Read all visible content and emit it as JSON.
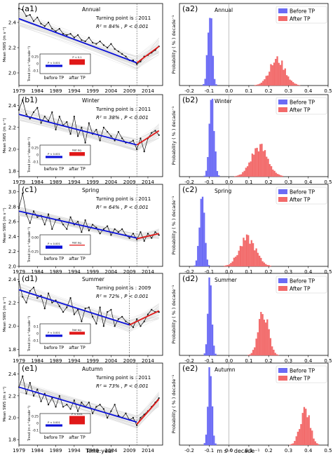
{
  "figure": {
    "left_xlabel": "Time:year",
    "right_xlabel": "m s⁻¹ decade⁻¹"
  },
  "colors": {
    "blue": "#0a10d8",
    "red": "#e01818",
    "before_hist": "#6b6bf5",
    "after_hist": "#f26a6a",
    "black": "#111111"
  },
  "chart_data": [
    {
      "type": "line",
      "id": "a1",
      "label": "(a1)",
      "season": "Annual",
      "ylabel": "Mean SWS (m s⁻¹)",
      "ylim": [
        1.9,
        2.55
      ],
      "yticks": [
        "2.0",
        "2.2",
        "2.4"
      ],
      "ytick_values": [
        2.0,
        2.2,
        2.4
      ],
      "x": [
        1979,
        1980,
        1981,
        1982,
        1983,
        1984,
        1985,
        1986,
        1987,
        1988,
        1989,
        1990,
        1991,
        1992,
        1993,
        1994,
        1995,
        1996,
        1997,
        1998,
        1999,
        2000,
        2001,
        2002,
        2003,
        2004,
        2005,
        2006,
        2007,
        2008,
        2009,
        2010,
        2011,
        2012,
        2013,
        2014,
        2015,
        2016,
        2017
      ],
      "xticks": [
        "1979",
        "1984",
        "1989",
        "1994",
        "1999",
        "2004",
        "2009",
        "2014"
      ],
      "values": [
        2.51,
        2.5,
        2.45,
        2.46,
        2.41,
        2.44,
        2.39,
        2.37,
        2.4,
        2.35,
        2.33,
        2.35,
        2.31,
        2.3,
        2.31,
        2.28,
        2.3,
        2.26,
        2.25,
        2.28,
        2.24,
        2.23,
        2.25,
        2.22,
        2.2,
        2.23,
        2.19,
        2.17,
        2.15,
        2.13,
        2.1,
        2.1,
        2.07,
        2.09,
        2.13,
        2.14,
        2.16,
        2.18,
        2.21
      ],
      "trend_before": [
        2.43,
        2.08
      ],
      "trend_after": [
        2.08,
        2.21
      ],
      "turning_year": 2011,
      "turning_text": "Turning point is : 2011",
      "r2_text": "R² = 84% , P < 0.001",
      "inset": {
        "ylabel": "Trend (m s⁻¹decade⁻¹)",
        "yticks": [
          "0.25",
          "0",
          "-0.1"
        ],
        "before_value": -0.1,
        "after_value": 0.25,
        "before_sig": "P < 0.001",
        "after_sig": "P < 0.1",
        "before_label": "before TP",
        "after_label": "after TP"
      }
    },
    {
      "type": "line",
      "id": "b1",
      "label": "(b1)",
      "season": "Winter",
      "ylabel": "Mean SWS (m s⁻¹)",
      "ylim": [
        1.75,
        2.5
      ],
      "yticks": [
        "1.8",
        "2.0",
        "2.2",
        "2.4"
      ],
      "ytick_values": [
        1.8,
        2.0,
        2.2,
        2.4
      ],
      "x": [
        1979,
        1980,
        1981,
        1982,
        1983,
        1984,
        1985,
        1986,
        1987,
        1988,
        1989,
        1990,
        1991,
        1992,
        1993,
        1994,
        1995,
        1996,
        1997,
        1998,
        1999,
        2000,
        2001,
        2002,
        2003,
        2004,
        2005,
        2006,
        2007,
        2008,
        2009,
        2010,
        2011,
        2012,
        2013,
        2014,
        2015,
        2016,
        2017
      ],
      "xticks": [
        "1979",
        "1984",
        "1989",
        "1994",
        "1999",
        "2004",
        "2009",
        "2014"
      ],
      "values": [
        2.36,
        2.45,
        2.32,
        2.28,
        2.34,
        2.38,
        2.24,
        2.3,
        2.26,
        2.34,
        2.18,
        2.3,
        2.22,
        2.25,
        2.14,
        2.3,
        2.12,
        2.2,
        2.06,
        2.24,
        2.14,
        2.18,
        2.08,
        2.2,
        2.16,
        2.12,
        2.08,
        2.16,
        2.1,
        2.06,
        2.06,
        2.08,
        2.0,
        2.1,
        1.98,
        2.1,
        2.15,
        2.17,
        2.13
      ],
      "trend_before": [
        2.32,
        2.04
      ],
      "trend_after": [
        2.04,
        2.17
      ],
      "turning_year": 2011,
      "turning_text": "Turning point is : 2011",
      "r2_text": "R² = 38% , P < 0.001",
      "inset": {
        "ylabel": "Trend (m s⁻¹decade⁻¹)",
        "yticks": [
          "0.25",
          "0",
          "-0.1"
        ],
        "before_value": -0.1,
        "after_value": 0.17,
        "before_sig": "P < 0.001",
        "after_sig": "Not sig.",
        "before_label": "before TP",
        "after_label": "after TP"
      }
    },
    {
      "type": "line",
      "id": "c1",
      "label": "(c1)",
      "season": "Spring",
      "ylabel": "Mean SWS (m s⁻¹)",
      "ylim": [
        2.0,
        3.1
      ],
      "yticks": [
        "2.0",
        "2.2",
        "2.4",
        "2.6",
        "2.8",
        "3.0"
      ],
      "ytick_values": [
        2.0,
        2.2,
        2.4,
        2.6,
        2.8,
        3.0
      ],
      "x": [
        1979,
        1980,
        1981,
        1982,
        1983,
        1984,
        1985,
        1986,
        1987,
        1988,
        1989,
        1990,
        1991,
        1992,
        1993,
        1994,
        1995,
        1996,
        1997,
        1998,
        1999,
        2000,
        2001,
        2002,
        2003,
        2004,
        2005,
        2006,
        2007,
        2008,
        2009,
        2010,
        2011,
        2012,
        2013,
        2014,
        2015,
        2016,
        2017
      ],
      "xticks": [
        "1979",
        "1984",
        "1989",
        "1994",
        "1999",
        "2004",
        "2009",
        "2014"
      ],
      "values": [
        2.78,
        2.98,
        2.7,
        2.58,
        2.74,
        2.66,
        2.68,
        2.56,
        2.7,
        2.5,
        2.62,
        2.64,
        2.56,
        2.5,
        2.66,
        2.56,
        2.6,
        2.46,
        2.62,
        2.48,
        2.56,
        2.52,
        2.44,
        2.5,
        2.54,
        2.42,
        2.5,
        2.46,
        2.5,
        2.42,
        2.38,
        2.44,
        2.36,
        2.46,
        2.34,
        2.44,
        2.38,
        2.46,
        2.42
      ],
      "trend_before": [
        2.74,
        2.38
      ],
      "trend_after": [
        2.37,
        2.44
      ],
      "turning_year": 2011,
      "turning_text": "Turning point is : 2011",
      "r2_text": "R² = 64% , P < 0.001",
      "inset": {
        "ylabel": "Trend (m s⁻¹decade⁻¹)",
        "yticks": [
          "0.00",
          "-0.25"
        ],
        "before_value": -0.14,
        "after_value": 0.04,
        "before_sig": "P < 0.001",
        "after_sig": "Not sig.",
        "before_label": "before TP",
        "after_label": "after TP"
      }
    },
    {
      "type": "line",
      "id": "d1",
      "label": "(d1)",
      "season": "Summer",
      "ylabel": "Mean SWS (m s⁻¹)",
      "ylim": [
        1.75,
        2.45
      ],
      "yticks": [
        "1.8",
        "2.0",
        "2.2",
        "2.4"
      ],
      "ytick_values": [
        1.8,
        2.0,
        2.2,
        2.4
      ],
      "x": [
        1979,
        1980,
        1981,
        1982,
        1983,
        1984,
        1985,
        1986,
        1987,
        1988,
        1989,
        1990,
        1991,
        1992,
        1993,
        1994,
        1995,
        1996,
        1997,
        1998,
        1999,
        2000,
        2001,
        2002,
        2003,
        2004,
        2005,
        2006,
        2007,
        2008,
        2009,
        2010,
        2011,
        2012,
        2013,
        2014,
        2015,
        2016,
        2017
      ],
      "xticks": [
        "1979",
        "1984",
        "1989",
        "1994",
        "1999",
        "2004",
        "2009",
        "2014"
      ],
      "values": [
        2.38,
        2.25,
        2.2,
        2.3,
        2.33,
        2.24,
        2.26,
        2.15,
        2.28,
        2.2,
        2.22,
        2.17,
        2.12,
        2.16,
        2.24,
        2.1,
        2.14,
        2.04,
        2.15,
        2.16,
        2.08,
        2.02,
        2.16,
        2.0,
        2.12,
        2.14,
        2.0,
        2.06,
        2.08,
        2.04,
        2.02,
        1.99,
        2.06,
        2.0,
        2.04,
        2.1,
        2.14,
        2.12,
        2.12
      ],
      "trend_before": [
        2.31,
        2.01
      ],
      "trend_after": [
        2.01,
        2.13
      ],
      "turning_year": 2009,
      "turning_text": "Turning point is : 2009",
      "r2_text": "R² = 72% , P < 0.001",
      "inset": {
        "ylabel": "Trend (m s⁻¹decade⁻¹)",
        "yticks": [
          "0.1",
          "0",
          "-0.1"
        ],
        "before_value": -0.1,
        "after_value": 0.13,
        "before_sig": "P < 0.001",
        "after_sig": "Not sig.",
        "before_label": "before TP",
        "after_label": "after TP"
      }
    },
    {
      "type": "line",
      "id": "e1",
      "label": "(e1)",
      "season": "Autumn",
      "ylabel": "Mean SWS (m s⁻¹)",
      "ylim": [
        1.75,
        2.5
      ],
      "yticks": [
        "1.8",
        "2.0",
        "2.2",
        "2.4"
      ],
      "ytick_values": [
        1.8,
        2.0,
        2.2,
        2.4
      ],
      "x": [
        1979,
        1980,
        1981,
        1982,
        1983,
        1984,
        1985,
        1986,
        1987,
        1988,
        1989,
        1990,
        1991,
        1992,
        1993,
        1994,
        1995,
        1996,
        1997,
        1998,
        1999,
        2000,
        2001,
        2002,
        2003,
        2004,
        2005,
        2006,
        2007,
        2008,
        2009,
        2010,
        2011,
        2012,
        2013,
        2014,
        2015,
        2016,
        2017
      ],
      "xticks": [
        "1979",
        "1984",
        "1989",
        "1994",
        "1999",
        "2004",
        "2009",
        "2014"
      ],
      "values": [
        2.28,
        2.38,
        2.22,
        2.32,
        2.2,
        2.26,
        2.15,
        2.22,
        2.12,
        2.18,
        2.1,
        2.2,
        2.1,
        2.12,
        2.08,
        2.16,
        2.06,
        2.14,
        2.1,
        2.14,
        2.04,
        2.1,
        2.12,
        2.08,
        2.0,
        2.06,
        2.12,
        2.02,
        2.0,
        2.04,
        1.98,
        2.0,
        1.93,
        2.0,
        2.03,
        2.06,
        2.1,
        2.14,
        2.18
      ],
      "trend_before": [
        2.28,
        1.96
      ],
      "trend_after": [
        1.94,
        2.17
      ],
      "turning_year": 2011,
      "turning_text": "Turning point is : 2011",
      "r2_text": "R² = 73% , P < 0.001",
      "inset": {
        "ylabel": "Trend (m s⁻¹decade⁻¹)",
        "yticks": [
          "0.25",
          "0",
          "-0.1"
        ],
        "before_value": -0.1,
        "after_value": 0.38,
        "before_sig": "P < 0.001",
        "after_sig": "P < 0.01",
        "before_label": "before TP",
        "after_label": "after TP"
      }
    },
    {
      "type": "bar",
      "id": "a2",
      "label": "(a2)",
      "season": "Annual",
      "ylabel": "Probability ( % ) decade⁻¹",
      "xlim": [
        -0.25,
        0.5
      ],
      "xticks": [
        "-0.2",
        "-0.1",
        "0.0",
        "0.1",
        "0.2",
        "0.3",
        "0.4",
        "0.5"
      ],
      "xtick_values": [
        -0.2,
        -0.1,
        0.0,
        0.1,
        0.2,
        0.3,
        0.4,
        0.5
      ],
      "legend": [
        "Before TP",
        "After TP"
      ],
      "before": {
        "center": -0.1,
        "spread": 0.02,
        "peak": 1.0
      },
      "after": {
        "center": 0.24,
        "spread": 0.07,
        "peak": 0.33
      }
    },
    {
      "type": "bar",
      "id": "b2",
      "label": "(b2)",
      "season": "Winter",
      "ylabel": "Probability ( % ) decade⁻¹",
      "xlim": [
        -0.25,
        0.5
      ],
      "xticks": [
        "-0.2",
        "-0.1",
        "0.0",
        "0.1",
        "0.2",
        "0.3",
        "0.4",
        "0.5"
      ],
      "xtick_values": [
        -0.2,
        -0.1,
        0.0,
        0.1,
        0.2,
        0.3,
        0.4,
        0.5
      ],
      "legend": [
        "Before TP",
        "After TP"
      ],
      "before": {
        "center": -0.09,
        "spread": 0.022,
        "peak": 1.0
      },
      "after": {
        "center": 0.15,
        "spread": 0.075,
        "peak": 0.38
      }
    },
    {
      "type": "bar",
      "id": "c2",
      "label": "(c2)",
      "season": "Spring",
      "ylabel": "Probability ( % ) decade⁻¹",
      "xlim": [
        -0.25,
        0.5
      ],
      "xticks": [
        "-0.2",
        "-0.1",
        "0.0",
        "0.1",
        "0.2",
        "0.3",
        "0.4",
        "0.5"
      ],
      "xtick_values": [
        -0.2,
        -0.1,
        0.0,
        0.1,
        0.2,
        0.3,
        0.4,
        0.5
      ],
      "legend": [
        "Before TP",
        "After TP"
      ],
      "before": {
        "center": -0.14,
        "spread": 0.022,
        "peak": 1.0
      },
      "after": {
        "center": 0.09,
        "spread": 0.075,
        "peak": 0.35
      }
    },
    {
      "type": "bar",
      "id": "d2",
      "label": "(d2)",
      "season": "Summer",
      "ylabel": "Probability ( % ) decade⁻¹",
      "xlim": [
        -0.25,
        0.5
      ],
      "xticks": [
        "-0.2",
        "-0.1",
        "0.0",
        "0.1",
        "0.2",
        "0.3",
        "0.4",
        "0.5"
      ],
      "xtick_values": [
        -0.2,
        -0.1,
        0.0,
        0.1,
        0.2,
        0.3,
        0.4,
        0.5
      ],
      "legend": [
        "Before TP",
        "After TP"
      ],
      "before": {
        "center": -0.1,
        "spread": 0.018,
        "peak": 1.0
      },
      "after": {
        "center": 0.17,
        "spread": 0.045,
        "peak": 0.55
      }
    },
    {
      "type": "bar",
      "id": "e2",
      "label": "(e2)",
      "season": "Autumn",
      "ylabel": "Probability ( % ) decade⁻¹",
      "xlim": [
        -0.25,
        0.5
      ],
      "xticks": [
        "-0.2",
        "-0.1",
        "0.0",
        "0.1",
        "0.2",
        "0.3",
        "0.4",
        "0.5"
      ],
      "xtick_values": [
        -0.2,
        -0.1,
        0.0,
        0.1,
        0.2,
        0.3,
        0.4,
        0.5
      ],
      "legend": [
        "Before TP",
        "After TP"
      ],
      "before": {
        "center": -0.1,
        "spread": 0.018,
        "peak": 1.0
      },
      "after": {
        "center": 0.38,
        "spread": 0.045,
        "peak": 0.45
      }
    }
  ]
}
